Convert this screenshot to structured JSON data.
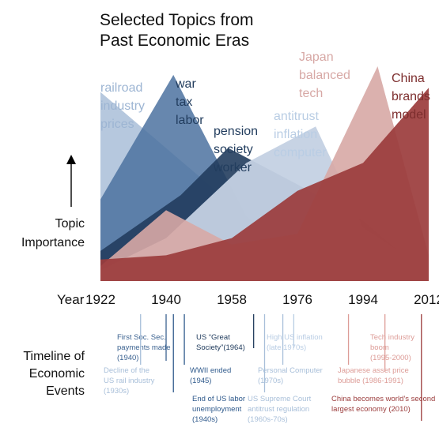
{
  "chart_data": {
    "type": "area",
    "title": [
      "Selected Topics from",
      "Past Economic Eras"
    ],
    "ylabel": [
      "Topic",
      "Importance"
    ],
    "xlabel": "Year",
    "x_ticks": [
      "1922",
      "1940",
      "1958",
      "1976",
      "1994",
      "2012"
    ],
    "x": [
      1922,
      1940,
      1958,
      1976,
      1994,
      2012
    ],
    "series": [
      {
        "name": [
          "railroad",
          "industry",
          "prices"
        ],
        "color": "#9db5d3",
        "opacity": 0.75,
        "points": [
          [
            1922,
            0.88
          ],
          [
            1962,
            0.3
          ],
          [
            1976,
            0.1
          ],
          [
            1986,
            0.05
          ],
          [
            2012,
            0.02
          ]
        ]
      },
      {
        "name": [
          "war",
          "tax",
          "labor"
        ],
        "color": "#4c72a0",
        "opacity": 0.85,
        "points": [
          [
            1922,
            0.38
          ],
          [
            1942,
            0.96
          ],
          [
            1962,
            0.3
          ],
          [
            1976,
            0.12
          ],
          [
            1986,
            0.05
          ],
          [
            2012,
            0.02
          ]
        ]
      },
      {
        "name": [
          "pension",
          "society",
          "worker"
        ],
        "color": "#223d5e",
        "opacity": 0.9,
        "points": [
          [
            1922,
            0.14
          ],
          [
            1944,
            0.4
          ],
          [
            1957,
            0.62
          ],
          [
            1976,
            0.45
          ],
          [
            1994,
            0.28
          ],
          [
            2012,
            0.02
          ]
        ]
      },
      {
        "name": [
          "antitrust",
          "inflation",
          "computer"
        ],
        "color": "#c4d1e3",
        "opacity": 0.95,
        "points": [
          [
            1922,
            0.05
          ],
          [
            1940,
            0.2
          ],
          [
            1962,
            0.55
          ],
          [
            1981,
            0.72
          ],
          [
            1994,
            0.25
          ],
          [
            2012,
            0.05
          ]
        ]
      },
      {
        "name": [
          "Japan",
          "balanced",
          "tech"
        ],
        "color": "#d7a8a5",
        "opacity": 0.9,
        "points": [
          [
            1922,
            0.07
          ],
          [
            1940,
            0.33
          ],
          [
            1958,
            0.17
          ],
          [
            1976,
            0.22
          ],
          [
            1998,
            1.0
          ],
          [
            2012,
            0.12
          ]
        ]
      },
      {
        "name": [
          "China",
          "brands",
          "model"
        ],
        "color": "#9b3c3c",
        "opacity": 0.92,
        "points": [
          [
            1922,
            0.1
          ],
          [
            1940,
            0.12
          ],
          [
            1958,
            0.2
          ],
          [
            1976,
            0.42
          ],
          [
            1994,
            0.55
          ],
          [
            2012,
            0.9
          ]
        ]
      }
    ]
  },
  "timeline": {
    "label": [
      "Timeline of",
      "Economic",
      "Events"
    ],
    "events": [
      {
        "year": 1940,
        "color": "#3b6290",
        "text": [
          "First Soc. Sec.",
          "payments made",
          "(1940)"
        ]
      },
      {
        "year": 1964,
        "color": "#223d5e",
        "text": [
          "US “Great",
          "Society”(1964)"
        ]
      },
      {
        "year": 1975,
        "color": "#b9cde4",
        "text": [
          "High US inflation",
          "(late 1970s)"
        ]
      },
      {
        "year": 2000,
        "color": "#dd9c97",
        "text": [
          "Tech industry",
          "boom",
          "(1995-2000)"
        ]
      },
      {
        "year": 1933,
        "color": "#a8bfd9",
        "text": [
          "Decline of the",
          "US rail industry",
          "(1930s)"
        ]
      },
      {
        "year": 1945,
        "color": "#2f5a8c",
        "text": [
          "WWII ended",
          "(1945)"
        ]
      },
      {
        "year": 1972,
        "color": "#a8bfd9",
        "text": [
          "Personal Computer",
          "(1970s)"
        ]
      },
      {
        "year": 1990,
        "color": "#dd9c97",
        "text": [
          "Japanese asset price",
          "bubble (1986-1991)"
        ]
      },
      {
        "year": 1942,
        "color": "#2f5a8c",
        "text": [
          "End of US labor",
          "unemployment",
          "(1940s)"
        ]
      },
      {
        "year": 1967,
        "color": "#a8bfd9",
        "text": [
          "US Supreme Court",
          "antitrust regulation",
          "(1960s-70s)"
        ]
      },
      {
        "year": 2010,
        "color": "#9b3c3c",
        "text": [
          "China becomes world’s second",
          "largest economy (2010)"
        ]
      }
    ]
  }
}
